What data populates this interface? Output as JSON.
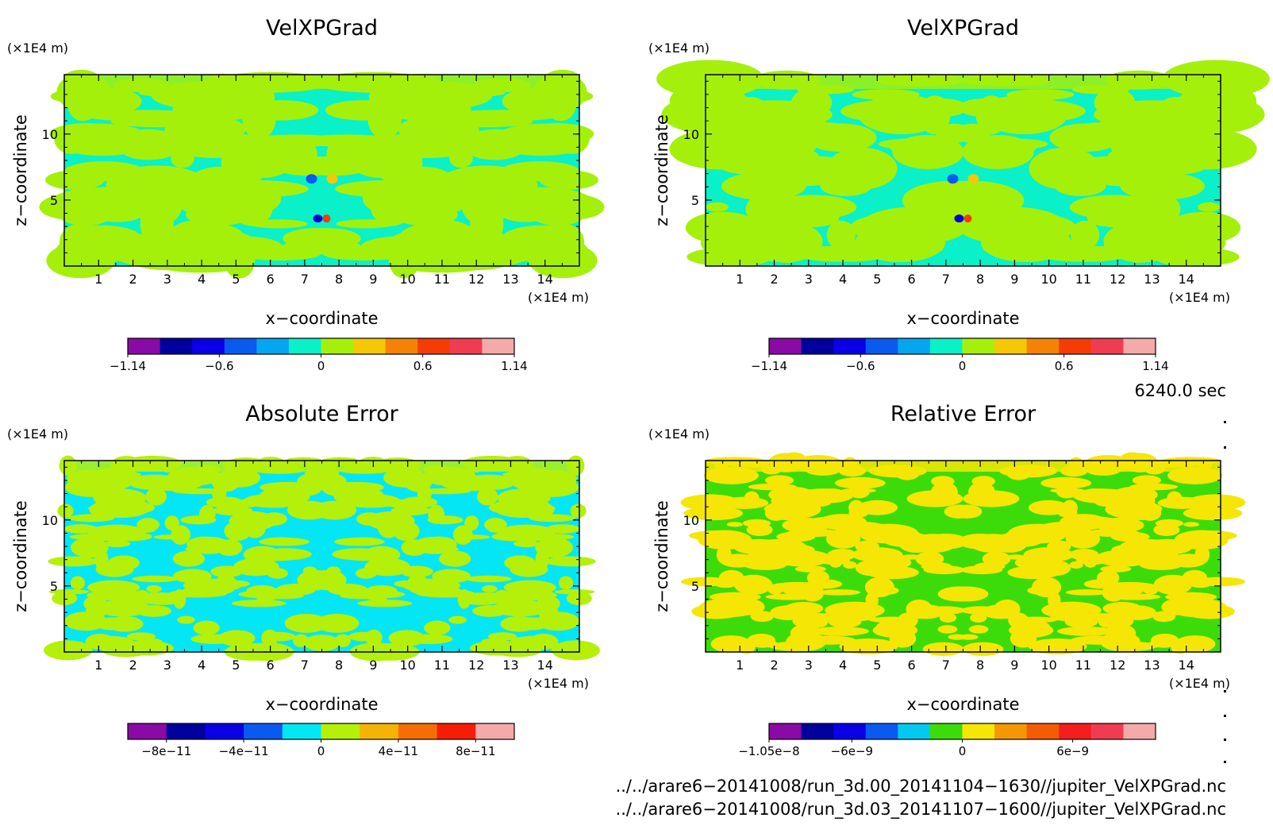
{
  "chart_data": [
    {
      "type": "heatmap",
      "title": "VelXPGrad",
      "xlabel": "x−coordinate",
      "ylabel": "z−coordinate",
      "x_unit": "(×1E4 m)",
      "y_unit": "(×1E4 m)",
      "xlim": [
        0,
        15
      ],
      "ylim": [
        0,
        14.5
      ],
      "xticks": [
        "1",
        "2",
        "3",
        "4",
        "5",
        "6",
        "7",
        "8",
        "9",
        "10",
        "11",
        "12",
        "13",
        "14"
      ],
      "yticks": [
        "5",
        "10"
      ],
      "colorbar": {
        "colors": [
          "#8a0aa6",
          "#00009c",
          "#0a00e6",
          "#0a5af0",
          "#05a5f0",
          "#0af0c8",
          "#a5f00a",
          "#f5c805",
          "#f58205",
          "#f53c05",
          "#f03c50",
          "#f5aaaa"
        ],
        "tick_labels": [
          "−1.14",
          "−0.6",
          "0",
          "0.6",
          "1.14"
        ],
        "range": [
          -1.14,
          1.14
        ]
      },
      "dominant_levels": [
        "#0af0c8",
        "#a5f00a"
      ]
    },
    {
      "type": "heatmap",
      "title": "VelXPGrad",
      "xlabel": "x−coordinate",
      "ylabel": "z−coordinate",
      "x_unit": "(×1E4 m)",
      "y_unit": "(×1E4 m)",
      "xlim": [
        0,
        15
      ],
      "ylim": [
        0,
        14.5
      ],
      "xticks": [
        "1",
        "2",
        "3",
        "4",
        "5",
        "6",
        "7",
        "8",
        "9",
        "10",
        "11",
        "12",
        "13",
        "14"
      ],
      "yticks": [
        "5",
        "10"
      ],
      "colorbar": {
        "colors": [
          "#8a0aa6",
          "#00009c",
          "#0a00e6",
          "#0a5af0",
          "#05a5f0",
          "#0af0c8",
          "#a5f00a",
          "#f5c805",
          "#f58205",
          "#f53c05",
          "#f03c50",
          "#f5aaaa"
        ],
        "tick_labels": [
          "−1.14",
          "−0.6",
          "0",
          "0.6",
          "1.14"
        ],
        "range": [
          -1.14,
          1.14
        ]
      },
      "dominant_levels": [
        "#0af0c8",
        "#a5f00a"
      ]
    },
    {
      "type": "heatmap",
      "title": "Absolute Error",
      "xlabel": "x−coordinate",
      "ylabel": "z−coordinate",
      "x_unit": "(×1E4 m)",
      "y_unit": "(×1E4 m)",
      "xlim": [
        0,
        15
      ],
      "ylim": [
        0,
        14.5
      ],
      "xticks": [
        "1",
        "2",
        "3",
        "4",
        "5",
        "6",
        "7",
        "8",
        "9",
        "10",
        "11",
        "12",
        "13",
        "14"
      ],
      "yticks": [
        "5",
        "10"
      ],
      "colorbar": {
        "colors": [
          "#8a0aa6",
          "#00009c",
          "#0a00e6",
          "#0a5af0",
          "#05e6f5",
          "#b4f00a",
          "#f5b405",
          "#f56e05",
          "#f51e05",
          "#f5aaaa"
        ],
        "tick_labels": [
          "−8e−11",
          "−4e−11",
          "0",
          "4e−11",
          "8e−11"
        ],
        "range": [
          -1e-10,
          1e-10
        ]
      },
      "dominant_levels": [
        "#05e6f5",
        "#b4f00a"
      ]
    },
    {
      "type": "heatmap",
      "title": "Relative Error",
      "xlabel": "x−coordinate",
      "ylabel": "z−coordinate",
      "x_unit": "(×1E4 m)",
      "y_unit": "(×1E4 m)",
      "xlim": [
        0,
        15
      ],
      "ylim": [
        0,
        14.5
      ],
      "xticks": [
        "1",
        "2",
        "3",
        "4",
        "5",
        "6",
        "7",
        "8",
        "9",
        "10",
        "11",
        "12",
        "13",
        "14"
      ],
      "yticks": [
        "5",
        "10"
      ],
      "colorbar": {
        "colors": [
          "#8a0aa6",
          "#00009c",
          "#0a00e6",
          "#0a5af0",
          "#05c8f0",
          "#3cdc0a",
          "#f5e605",
          "#f59605",
          "#f55a05",
          "#f51e1e",
          "#f03c50",
          "#f5aaaa"
        ],
        "tick_labels": [
          "−1.05e−8",
          "−6e−9",
          "0",
          "6e−9"
        ],
        "range": [
          -1.05e-08,
          1.05e-08
        ]
      },
      "dominant_levels": [
        "#3cdc0a",
        "#f5e605"
      ]
    }
  ],
  "time_label": "6240.0 sec",
  "file_paths": [
    "../../arare6−20141008/run_3d.00_20141104−1630//jupiter_VelXPGrad.nc",
    "../../arare6−20141008/run_3d.03_20141107−1600//jupiter_VelXPGrad.nc"
  ]
}
